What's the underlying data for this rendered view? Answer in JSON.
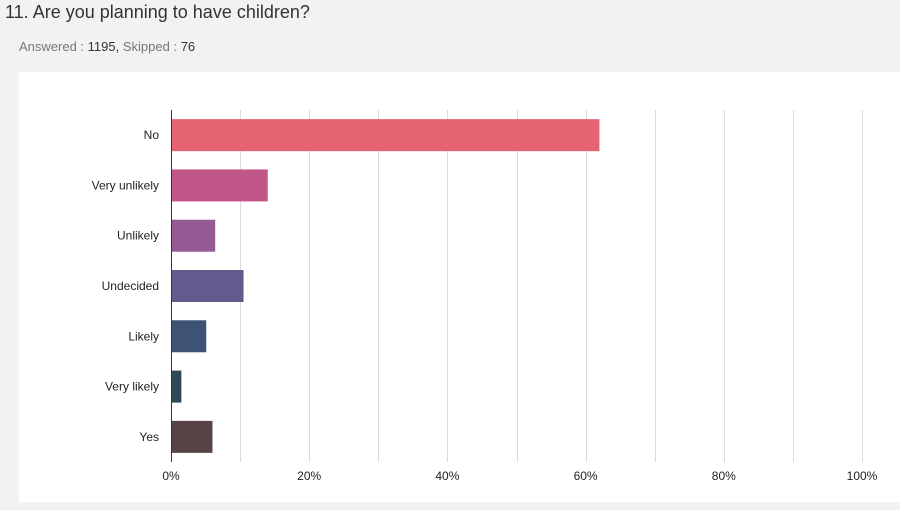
{
  "question": {
    "number": "11.",
    "text": "Are you planning to have children?"
  },
  "stats": {
    "answered_label": "Answered :",
    "answered_value": "1195,",
    "skipped_label": "Skipped :",
    "skipped_value": "76"
  },
  "chart_data": {
    "type": "bar",
    "orientation": "horizontal",
    "categories": [
      "No",
      "Very unlikely",
      "Unlikely",
      "Undecided",
      "Likely",
      "Very likely",
      "Yes"
    ],
    "values": [
      62,
      14,
      6.4,
      10.5,
      5.1,
      1.5,
      6
    ],
    "colors": [
      "#e56473",
      "#c35689",
      "#955993",
      "#635a8d",
      "#3e5276",
      "#2f4858",
      "#574346"
    ],
    "xlim": [
      0,
      100
    ],
    "x_ticks": [
      "0%",
      "20%",
      "40%",
      "60%",
      "80%",
      "100%"
    ],
    "x_tick_values": [
      0,
      20,
      40,
      60,
      80,
      100
    ],
    "grid": true,
    "unit": "%"
  }
}
